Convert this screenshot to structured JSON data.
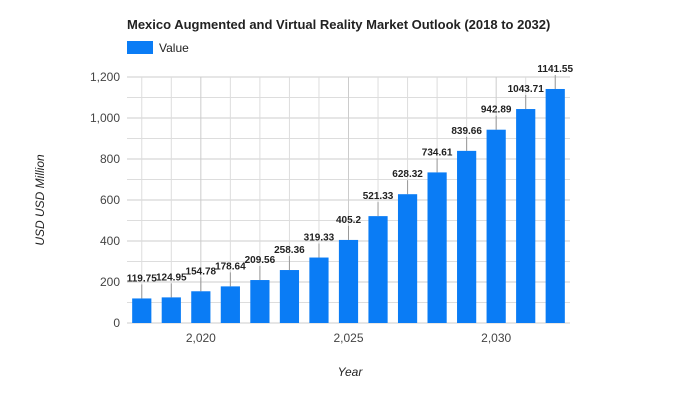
{
  "chart_data": {
    "type": "bar",
    "title": "Mexico Augmented and Virtual Reality Market Outlook (2018 to 2032)",
    "xlabel": "Year",
    "ylabel": "USD USD Million",
    "legend": {
      "position": "top-left",
      "entries": [
        "Value"
      ]
    },
    "x": [
      2018,
      2019,
      2020,
      2021,
      2022,
      2023,
      2024,
      2025,
      2026,
      2027,
      2028,
      2029,
      2030,
      2031,
      2032
    ],
    "series": [
      {
        "name": "Value",
        "color": "#0a7cf5",
        "values": [
          119.75,
          124.95,
          154.78,
          178.64,
          209.56,
          258.36,
          319.33,
          405.2,
          521.33,
          628.32,
          734.61,
          839.66,
          942.89,
          1043.71,
          1141.55
        ],
        "labels": [
          "119.75",
          "124.95",
          "154.78",
          "178.64",
          "209.56",
          "258.36",
          "319.33",
          "405.2",
          "521.33",
          "628.32",
          "734.61",
          "839.66",
          "942.89",
          "1043.71",
          "1141.55"
        ]
      }
    ],
    "xlim": [
      2017.5,
      2032.5
    ],
    "ylim": [
      0,
      1200
    ],
    "xticks": [
      2020,
      2025,
      2030
    ],
    "xtick_labels": [
      "2,020",
      "2,025",
      "2,030"
    ],
    "yticks": [
      0,
      200,
      400,
      600,
      800,
      1000,
      1200
    ],
    "ytick_labels": [
      "0",
      "200",
      "400",
      "600",
      "800",
      "1,000",
      "1,200"
    ],
    "grid": true
  }
}
